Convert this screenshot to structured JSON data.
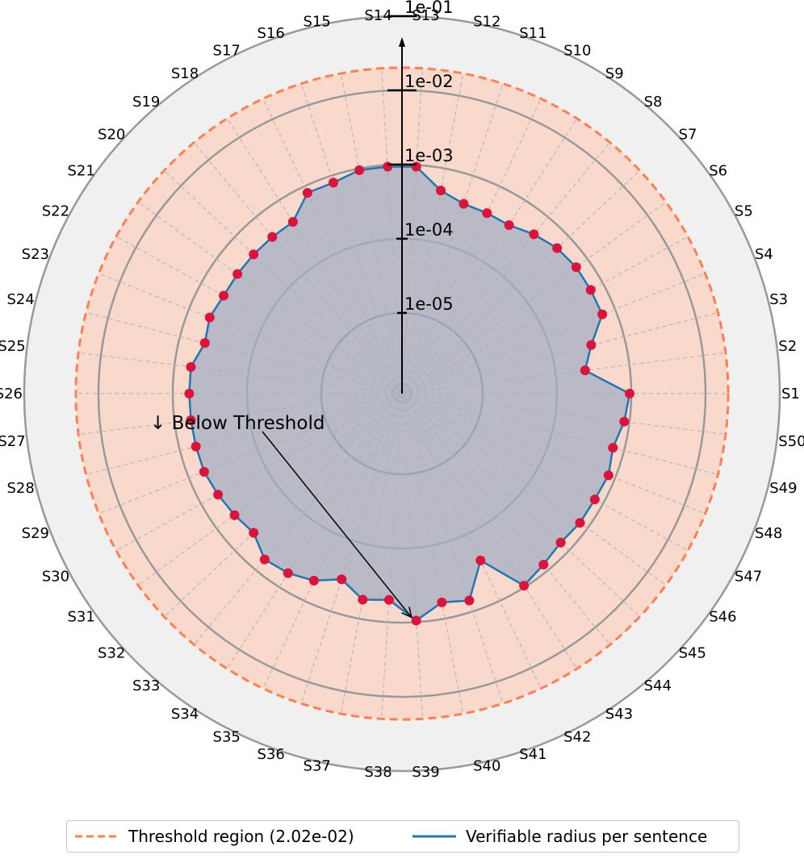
{
  "chart_data": {
    "type": "radar",
    "scale": "log",
    "rings": [
      {
        "value": 1e-05,
        "label": "1e-05"
      },
      {
        "value": 0.0001,
        "label": "1e-04"
      },
      {
        "value": 0.001,
        "label": "1e-03"
      },
      {
        "value": 0.01,
        "label": "1e-02"
      },
      {
        "value": 0.1,
        "label": "1e-01"
      }
    ],
    "threshold": 0.0202,
    "categories": [
      "S1",
      "S2",
      "S3",
      "S4",
      "S5",
      "S6",
      "S7",
      "S8",
      "S9",
      "S10",
      "S11",
      "S12",
      "S13",
      "S14",
      "S15",
      "S16",
      "S17",
      "S18",
      "S19",
      "S20",
      "S21",
      "S22",
      "S23",
      "S24",
      "S25",
      "S26",
      "S27",
      "S28",
      "S29",
      "S30",
      "S31",
      "S32",
      "S33",
      "S34",
      "S35",
      "S36",
      "S37",
      "S38",
      "S39",
      "S40",
      "S41",
      "S42",
      "S43",
      "S44",
      "S45",
      "S46",
      "S47",
      "S48",
      "S49",
      "S50"
    ],
    "series": [
      {
        "name": "Verifiable radius per sentence",
        "values": [
          0.00095,
          0.00025,
          0.00035,
          0.00065,
          0.00065,
          0.00065,
          0.0006,
          0.0005,
          0.0004,
          0.0004,
          0.0004,
          0.0005,
          0.00095,
          0.00095,
          0.00095,
          0.0008,
          0.0008,
          0.00045,
          0.00045,
          0.00045,
          0.00045,
          0.00045,
          0.0005,
          0.00045,
          0.0006,
          0.0006,
          0.0006,
          0.0006,
          0.0006,
          0.00055,
          0.0005,
          0.00045,
          0.00065,
          0.0006,
          0.0005,
          0.00035,
          0.00055,
          0.0005,
          0.00095,
          0.0006,
          0.0007,
          0.00025,
          0.00095,
          0.0008,
          0.0007,
          0.00075,
          0.00075,
          0.0008,
          0.0007,
          0.00085
        ]
      }
    ],
    "annotation": "↓ Below Threshold",
    "legend": {
      "threshold_label": "Threshold region (2.02e-02)",
      "series_label": "Verifiable radius per sentence",
      "position": "bottom"
    },
    "colors": {
      "threshold": "#ff7f50",
      "threshold_fill": "#f9d9cc",
      "outer_fill": "#f0f0f0",
      "ring": "#999999",
      "inner_ring": "#808080",
      "series_line": "#1f77b4",
      "series_fill": "#a4adc4",
      "marker": "#dc143c",
      "spoke": "#bbbbbb"
    }
  }
}
